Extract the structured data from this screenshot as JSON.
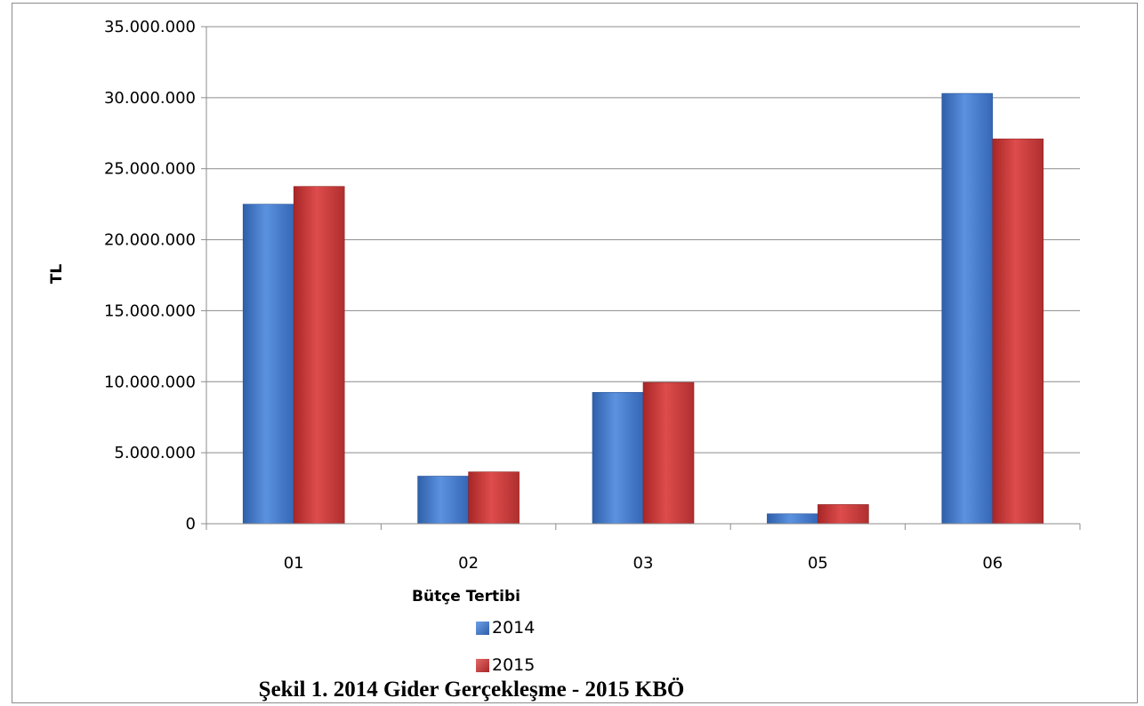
{
  "chart_data": {
    "type": "bar",
    "title": "",
    "xlabel": "Bütçe Tertibi",
    "ylabel": "TL",
    "categories": [
      "01",
      "02",
      "03",
      "05",
      "06"
    ],
    "series": [
      {
        "name": "2014",
        "color": "#4a7fd0",
        "values": [
          22500000,
          3350000,
          9250000,
          700000,
          30300000
        ]
      },
      {
        "name": "2015",
        "color": "#cc3b3b",
        "values": [
          23750000,
          3650000,
          9950000,
          1350000,
          27100000
        ]
      }
    ],
    "ylim": [
      0,
      35000000
    ],
    "yticks": [
      0,
      5000000,
      10000000,
      15000000,
      20000000,
      25000000,
      30000000,
      35000000
    ],
    "ytick_labels": [
      "0",
      "5.000.000",
      "10.000.000",
      "15.000.000",
      "20.000.000",
      "25.000.000",
      "30.000.000",
      "35.000.000"
    ],
    "grid": true,
    "legend_position": "bottom-center"
  },
  "caption": "Şekil 1. 2014 Gider Gerçekleşme - 2015 KBÖ"
}
